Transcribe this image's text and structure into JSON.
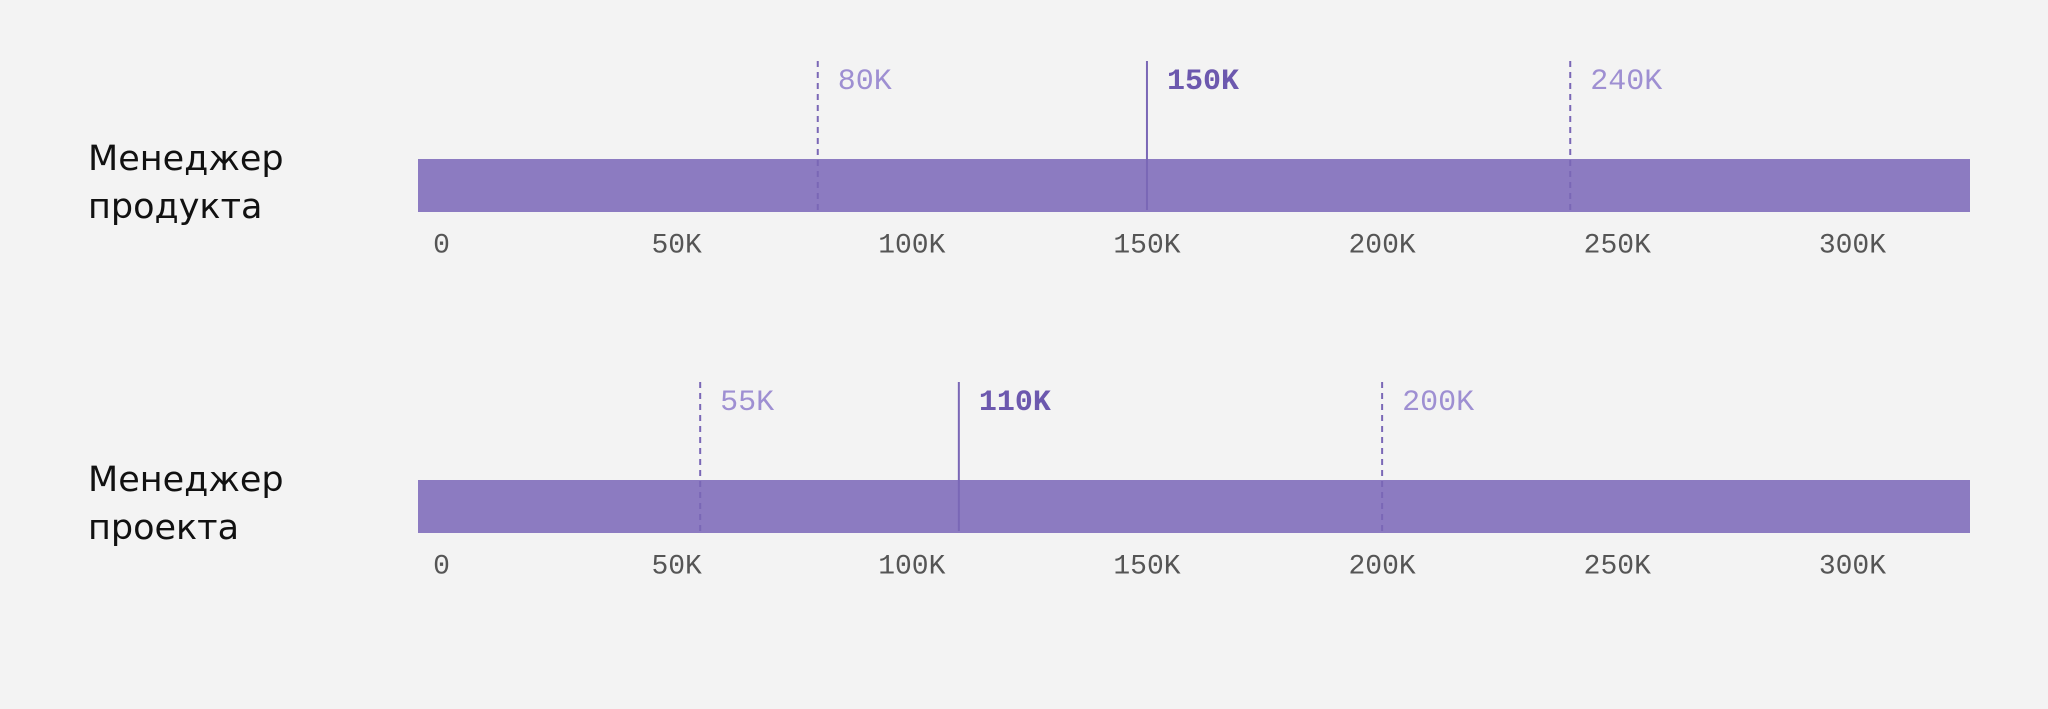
{
  "chart_data": [
    {
      "type": "range",
      "title": "Менеджер продукта",
      "color": "#8c7bc1",
      "xlim": [
        -5000,
        325000
      ],
      "xticks": [
        {
          "value": 0,
          "label": "0"
        },
        {
          "value": 50000,
          "label": "50K"
        },
        {
          "value": 100000,
          "label": "100K"
        },
        {
          "value": 150000,
          "label": "150K"
        },
        {
          "value": 200000,
          "label": "200K"
        },
        {
          "value": 250000,
          "label": "250K"
        },
        {
          "value": 300000,
          "label": "300K"
        }
      ],
      "markers": [
        {
          "value": 80000,
          "label": "80K",
          "style": "dashed"
        },
        {
          "value": 150000,
          "label": "150K",
          "style": "solid"
        },
        {
          "value": 240000,
          "label": "240K",
          "style": "dashed"
        }
      ]
    },
    {
      "type": "range",
      "title": "Менеджер проекта",
      "color": "#8c7bc1",
      "xlim": [
        -5000,
        325000
      ],
      "xticks": [
        {
          "value": 0,
          "label": "0"
        },
        {
          "value": 50000,
          "label": "50K"
        },
        {
          "value": 100000,
          "label": "100K"
        },
        {
          "value": 150000,
          "label": "150K"
        },
        {
          "value": 200000,
          "label": "200K"
        },
        {
          "value": 250000,
          "label": "250K"
        },
        {
          "value": 300000,
          "label": "300K"
        }
      ],
      "markers": [
        {
          "value": 55000,
          "label": "55K",
          "style": "dashed"
        },
        {
          "value": 110000,
          "label": "110K",
          "style": "solid"
        },
        {
          "value": 200000,
          "label": "200K",
          "style": "dashed"
        }
      ]
    }
  ]
}
